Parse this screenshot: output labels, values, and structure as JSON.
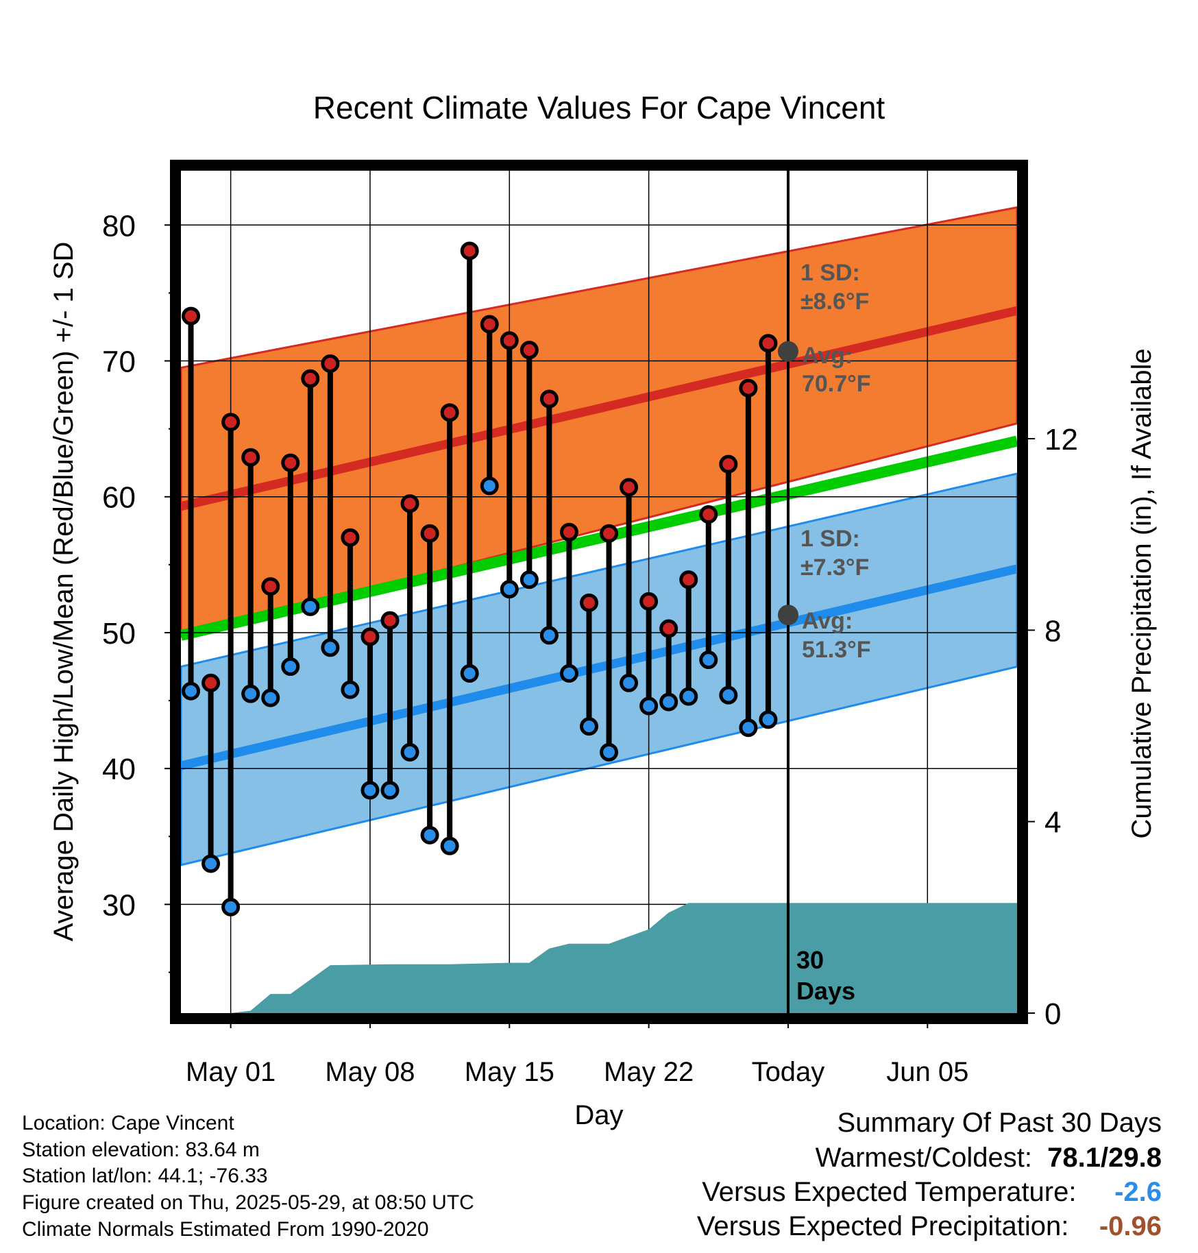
{
  "chart_data": {
    "type": "line",
    "title": "Recent Climate Values For Cape Vincent",
    "xlabel": "Day",
    "ylabel": "Average Daily High/Low/Mean (Red/Blue/Green) +/- 1 SD",
    "y2label": "Cumulative Precipitation (in), If Available",
    "xlim": [
      -2.5,
      39.5
    ],
    "ylim": [
      22,
      84
    ],
    "y2lim": [
      0,
      17.6
    ],
    "grid": true,
    "yticks": [
      30,
      40,
      50,
      60,
      70,
      80
    ],
    "y2ticks": [
      0,
      4,
      8,
      12
    ],
    "xticks": [
      {
        "x": 0,
        "label": "May 01"
      },
      {
        "x": 7,
        "label": "May 08"
      },
      {
        "x": 14,
        "label": "May 15"
      },
      {
        "x": 21,
        "label": "May 22"
      },
      {
        "x": 28,
        "label": "Today"
      },
      {
        "x": 35,
        "label": "Jun 05"
      }
    ],
    "today_x": 28,
    "days_observed": [
      -2,
      -1,
      0,
      1,
      2,
      3,
      4,
      5,
      6,
      7,
      8,
      9,
      10,
      11,
      12,
      13,
      14,
      15,
      16,
      17,
      18,
      19,
      20,
      21,
      22,
      23,
      24,
      25,
      26,
      27
    ],
    "daily_high": [
      73.3,
      46.3,
      65.5,
      62.9,
      53.4,
      62.5,
      68.7,
      69.8,
      57.0,
      49.7,
      50.9,
      59.5,
      57.3,
      66.2,
      78.1,
      72.7,
      71.5,
      70.8,
      67.2,
      57.4,
      52.2,
      57.3,
      60.7,
      52.3,
      50.3,
      53.9,
      58.7,
      62.4,
      68.0,
      71.3
    ],
    "daily_low": [
      45.7,
      33.0,
      29.8,
      45.5,
      45.2,
      47.5,
      51.9,
      48.9,
      45.8,
      38.4,
      38.4,
      41.2,
      35.1,
      34.3,
      47.0,
      60.8,
      53.2,
      53.9,
      49.8,
      47.0,
      43.1,
      41.2,
      46.3,
      44.6,
      44.9,
      45.3,
      48.0,
      45.4,
      43.0,
      43.6
    ],
    "normals_x": [
      -2.5,
      39.5
    ],
    "normal_high": [
      59.3,
      73.7
    ],
    "normal_high_upper": [
      69.5,
      81.3
    ],
    "normal_high_lower": [
      49.7,
      65.4
    ],
    "normal_mean": [
      49.8,
      64.1
    ],
    "normal_low": [
      40.2,
      54.7
    ],
    "normal_low_upper": [
      47.5,
      61.7
    ],
    "normal_low_lower": [
      32.9,
      47.5
    ],
    "precip_x": [
      -2.5,
      0,
      1,
      2,
      3,
      4,
      5,
      8,
      11,
      14,
      15,
      16,
      17,
      18,
      19,
      20,
      21,
      22,
      23,
      39.5
    ],
    "precip_cum": [
      0,
      0,
      0.05,
      0.4,
      0.4,
      0.7,
      1.0,
      1.02,
      1.02,
      1.05,
      1.05,
      1.35,
      1.45,
      1.45,
      1.45,
      1.6,
      1.75,
      2.1,
      2.3,
      2.3
    ],
    "colors": {
      "high_band": "#f47c30",
      "high_line": "#d42a22",
      "low_band": "#86c0e6",
      "low_line": "#1f8ceb",
      "mean_line": "#00cc00",
      "precip": "#4a9ca5",
      "high_marker": "#cc2222",
      "low_marker": "#2a8de8",
      "avg_marker": "#404040"
    },
    "annotations": {
      "high_sd_label": "1 SD:",
      "high_sd_value": "±8.6°F",
      "high_avg_label": "Avg:",
      "high_avg_value": "70.7°F",
      "high_avg": 70.7,
      "low_sd_label": "1 SD:",
      "low_sd_value": "±7.3°F",
      "low_avg_label": "Avg:",
      "low_avg_value": "51.3°F",
      "low_avg": 51.3,
      "period_number": "30",
      "period_unit": "Days"
    }
  },
  "info": {
    "location": "Location: Cape Vincent",
    "elevation": "Station elevation: 83.64 m",
    "latlon": "Station lat/lon: 44.1; -76.33",
    "created": "Figure created on Thu, 2025-05-29, at 08:50 UTC",
    "normals": "Climate Normals Estimated From 1990-2020"
  },
  "summary": {
    "title": "Summary Of Past 30 Days",
    "warm_cold_label": "Warmest/Coldest:",
    "warm_cold_value": "78.1/29.8",
    "temp_label": "Versus Expected Temperature:",
    "temp_value": "-2.6",
    "temp_color": "#2a8de8",
    "precip_label": "Versus Expected Precipitation:",
    "precip_value": "-0.96",
    "precip_color": "#a0522d"
  }
}
